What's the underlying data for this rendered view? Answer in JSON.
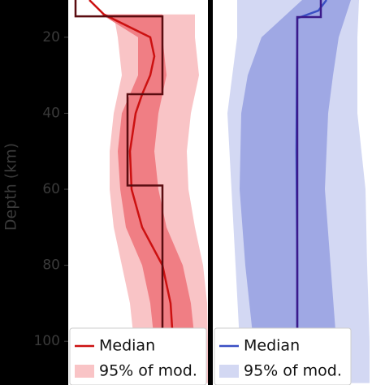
{
  "chart_data": [
    {
      "type": "line",
      "ylabel": "Depth (km)",
      "ylim": [
        10.2,
        111.5
      ],
      "yticks": [
        20,
        40,
        60,
        80,
        100
      ],
      "xlim": [
        0,
        172
      ],
      "invert_y": true,
      "series": [
        {
          "name": "95% of mod.",
          "color": "#f9c4c6",
          "kind": "band",
          "values": [
            14,
            20,
            30,
            40,
            50,
            60,
            70,
            80,
            90,
            100,
            111
          ],
          "x_lower": [
            56,
            61,
            66,
            56,
            51,
            51,
            56,
            66,
            76,
            81,
            81
          ],
          "x_upper": [
            156,
            156,
            161,
            151,
            146,
            148,
            156,
            166,
            171,
            172,
            172
          ]
        },
        {
          "color": "#f07e84",
          "kind": "band",
          "values": [
            14,
            20,
            30,
            40,
            50,
            60,
            70,
            80,
            90,
            100,
            111
          ],
          "x_lower": [
            41,
            86,
            86,
            66,
            61,
            64,
            71,
            91,
            101,
            106,
            108
          ],
          "x_upper": [
            116,
            116,
            121,
            111,
            106,
            111,
            121,
            141,
            151,
            156,
            158
          ]
        },
        {
          "name": "Median",
          "color": "#cc1111",
          "kind": "line",
          "values": [
            10.2,
            14,
            20,
            25,
            30,
            35,
            40,
            50,
            60,
            70,
            80,
            90,
            100,
            111
          ],
          "x": [
            26,
            44,
            101,
            106,
            101,
            91,
            83,
            76,
            78,
            91,
            116,
            126,
            129,
            131
          ]
        },
        {
          "color": "#5a0c10",
          "kind": "line",
          "values": [
            10.2,
            14.5,
            14.5,
            35,
            35,
            59,
            59,
            111.5
          ],
          "x": [
            9,
            9,
            116,
            116,
            73,
            73,
            116,
            116
          ]
        }
      ]
    },
    {
      "type": "line",
      "ylim": [
        10.2,
        111.5
      ],
      "xlim": [
        0,
        212
      ],
      "invert_y": true,
      "series": [
        {
          "name": "95% of mod.",
          "color": "#d3d8f3",
          "kind": "band",
          "values": [
            10.2,
            20,
            40,
            60,
            80,
            100,
            111
          ],
          "x_lower": [
            30,
            30,
            18,
            23,
            28,
            33,
            33
          ],
          "x_upper": [
            180,
            178,
            178,
            188,
            190,
            193,
            193
          ]
        },
        {
          "color": "#9fa8e4",
          "kind": "band",
          "values": [
            10.2,
            20,
            30,
            40,
            60,
            80,
            100,
            111
          ],
          "x_lower": [
            110,
            60,
            43,
            35,
            33,
            40,
            50,
            52
          ],
          "x_upper": [
            170,
            155,
            148,
            142,
            138,
            145,
            152,
            154
          ]
        },
        {
          "name": "Median",
          "color": "#3a4fc4",
          "kind": "line",
          "values": [
            10.2,
            13,
            15,
            50,
            80,
            100,
            111.5
          ],
          "x": [
            140,
            130,
            104,
            103,
            104,
            104,
            104
          ]
        },
        {
          "color": "#3b1a8a",
          "kind": "line",
          "values": [
            10.2,
            14.7,
            14.7,
            111.5
          ],
          "x": [
            133,
            133,
            104,
            104
          ]
        }
      ]
    }
  ]
}
